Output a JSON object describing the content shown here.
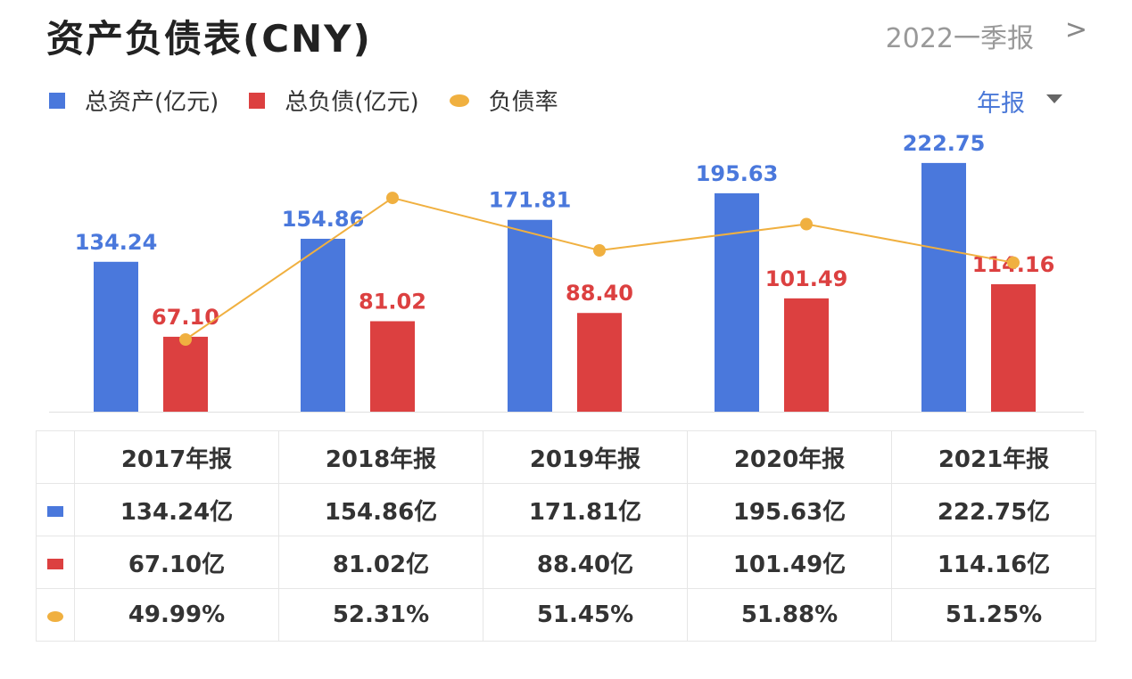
{
  "header": {
    "title": "资产负债表(CNY)",
    "period": "2022一季报",
    "chevron": ">"
  },
  "legend": {
    "items": [
      "总资产(亿元)",
      "总负债(亿元)",
      "负债率"
    ],
    "period_select": "年报"
  },
  "colors": {
    "assets": "#4a78dc",
    "liabilities": "#dc4040",
    "ratio": "#f0b040"
  },
  "chart_data": {
    "type": "bar",
    "categories": [
      "2017年报",
      "2018年报",
      "2019年报",
      "2020年报",
      "2021年报"
    ],
    "series": [
      {
        "name": "总资产(亿元)",
        "type": "bar",
        "values": [
          134.24,
          154.86,
          171.81,
          195.63,
          222.75
        ],
        "labels": [
          "134.24",
          "154.86",
          "171.81",
          "195.63",
          "222.75"
        ]
      },
      {
        "name": "总负债(亿元)",
        "type": "bar",
        "values": [
          67.1,
          81.02,
          88.4,
          101.49,
          114.16
        ],
        "labels": [
          "67.10",
          "81.02",
          "88.40",
          "101.49",
          "114.16"
        ]
      },
      {
        "name": "负债率",
        "type": "line",
        "values": [
          49.99,
          52.31,
          51.45,
          51.88,
          51.25
        ],
        "unit": "%"
      }
    ],
    "grid": false,
    "legend_position": "top-left"
  },
  "table": {
    "headers": [
      "2017年报",
      "2018年报",
      "2019年报",
      "2020年报",
      "2021年报"
    ],
    "rows": [
      [
        "134.24亿",
        "154.86亿",
        "171.81亿",
        "195.63亿",
        "222.75亿"
      ],
      [
        "67.10亿",
        "81.02亿",
        "88.40亿",
        "101.49亿",
        "114.16亿"
      ],
      [
        "49.99%",
        "52.31%",
        "51.45%",
        "51.88%",
        "51.25%"
      ]
    ]
  }
}
